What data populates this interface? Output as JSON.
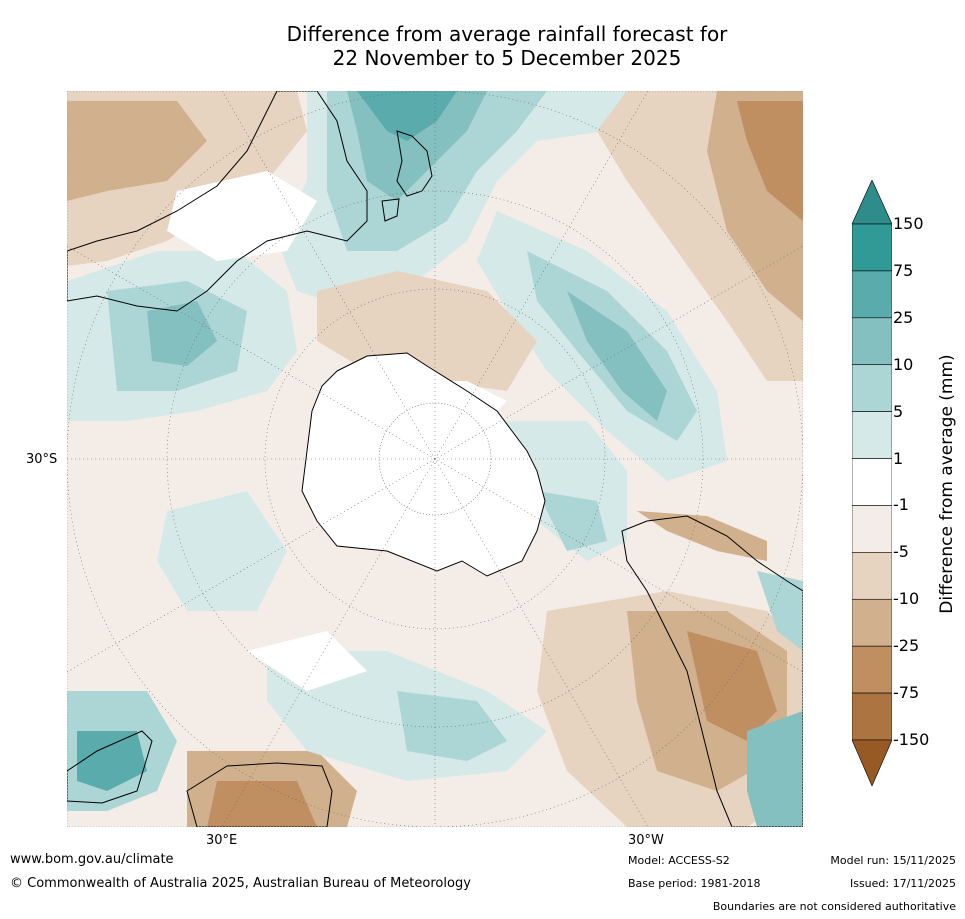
{
  "title": {
    "line1": "Difference from average rainfall forecast for",
    "line2": "22 November to 5 December 2025"
  },
  "map": {
    "projection": "south-polar-stereographic",
    "latitude_labels": [
      "30°S"
    ],
    "longitude_labels": [
      "30°E",
      "30°W"
    ],
    "landmasses": [
      "Antarctica",
      "Australia",
      "New Zealand",
      "South America",
      "Southern Africa"
    ]
  },
  "legend": {
    "title": "Difference from average (mm)",
    "ticks": [
      "150",
      "75",
      "25",
      "10",
      "5",
      "1",
      "-1",
      "-5",
      "-10",
      "-25",
      "-75",
      "-150"
    ],
    "colors": [
      "#2e8c8a",
      "#309a97",
      "#5aabab",
      "#84c0bf",
      "#acd6d5",
      "#d5e9e8",
      "#ffffff",
      "#f4ede7",
      "#e6d3c0",
      "#d1b08e",
      "#bf8f62",
      "#ac7440",
      "#975a24"
    ]
  },
  "footer": {
    "website": "www.bom.gov.au/climate",
    "copyright": "© Commonwealth of Australia 2025, Australian Bureau of Meteorology",
    "model": "Model: ACCESS-S2",
    "base_period": "Base period: 1981-2018",
    "model_run": "Model run: 15/11/2025",
    "issued": "Issued: 17/11/2025",
    "disclaimer": "Boundaries are not considered authoritative"
  }
}
